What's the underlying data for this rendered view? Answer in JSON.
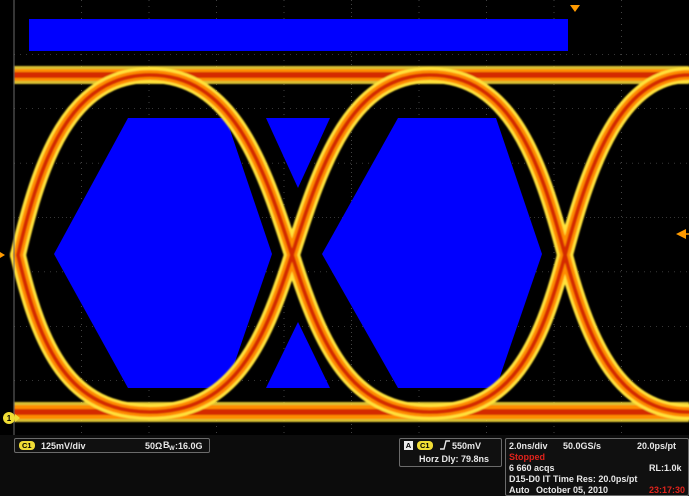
{
  "colors": {
    "trace_hot": "#d42a00",
    "trace_warm": "#ff8c00",
    "trace_edge": "#ffe23a",
    "mask": "#0000ff",
    "channel": "#f1dd35",
    "stopped": "#e0231c"
  },
  "screen": {
    "channel_marker": "1",
    "trigger_position_marker": "trigger-position-marker",
    "trigger_level_marker": "trigger-level-marker"
  },
  "channel_panel": {
    "channel_badge": "C1",
    "volts_per_div": "125mV/div",
    "impedance": "50Ω",
    "bandwidth_prefix": "B",
    "bandwidth_sub": "W",
    "bandwidth_value": ":16.0G"
  },
  "trigger_panel": {
    "source_badge": "A",
    "channel_badge": "C1",
    "slope_icon": "rising-edge-icon",
    "level": "550mV",
    "horz_delay": "Horz Dly:  79.8ns"
  },
  "acquisition_panel": {
    "time_per_div": "2.0ns/div",
    "sample_rate": "50.0GS/s",
    "time_per_point": "20.0ps/pt",
    "state": "Stopped",
    "acqs": "6 660 acqs",
    "record_length": "RL:1.0k",
    "channels_info": "D15-D0   IT  Time Res: 20.0ps/pt",
    "mode": "Auto",
    "date": "October 05, 2010",
    "time": "23:17:30"
  }
}
